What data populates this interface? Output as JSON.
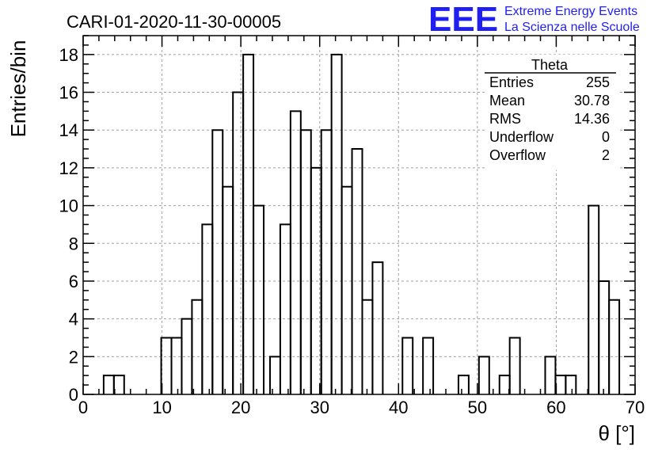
{
  "chart_data": {
    "type": "histogram",
    "title": "CARI-01-2020-11-30-00005",
    "xlabel": "θ [°]",
    "ylabel": "Entries/bin",
    "xlim": [
      0,
      70
    ],
    "ylim": [
      0,
      19
    ],
    "grid": true,
    "bin_width": 1.3,
    "bins": [
      {
        "x0": 2.6,
        "x1": 3.9,
        "count": 1
      },
      {
        "x0": 3.9,
        "x1": 5.2,
        "count": 1
      },
      {
        "x0": 9.9,
        "x1": 11.2,
        "count": 3
      },
      {
        "x0": 11.2,
        "x1": 12.5,
        "count": 3
      },
      {
        "x0": 12.5,
        "x1": 13.8,
        "count": 4
      },
      {
        "x0": 13.8,
        "x1": 15.1,
        "count": 5
      },
      {
        "x0": 15.1,
        "x1": 16.4,
        "count": 9
      },
      {
        "x0": 16.4,
        "x1": 17.7,
        "count": 14
      },
      {
        "x0": 17.7,
        "x1": 19.0,
        "count": 11
      },
      {
        "x0": 19.0,
        "x1": 20.3,
        "count": 16
      },
      {
        "x0": 20.3,
        "x1": 21.6,
        "count": 18
      },
      {
        "x0": 21.6,
        "x1": 22.9,
        "count": 10
      },
      {
        "x0": 23.7,
        "x1": 25.0,
        "count": 2
      },
      {
        "x0": 25.0,
        "x1": 26.3,
        "count": 9
      },
      {
        "x0": 26.3,
        "x1": 27.6,
        "count": 15
      },
      {
        "x0": 27.6,
        "x1": 28.9,
        "count": 14
      },
      {
        "x0": 28.9,
        "x1": 30.2,
        "count": 12
      },
      {
        "x0": 30.2,
        "x1": 31.5,
        "count": 14
      },
      {
        "x0": 31.5,
        "x1": 32.8,
        "count": 18
      },
      {
        "x0": 32.8,
        "x1": 34.1,
        "count": 11
      },
      {
        "x0": 34.1,
        "x1": 35.4,
        "count": 13
      },
      {
        "x0": 35.4,
        "x1": 36.7,
        "count": 5
      },
      {
        "x0": 36.7,
        "x1": 38.0,
        "count": 7
      },
      {
        "x0": 40.5,
        "x1": 41.8,
        "count": 3
      },
      {
        "x0": 43.1,
        "x1": 44.4,
        "count": 3
      },
      {
        "x0": 47.6,
        "x1": 48.9,
        "count": 1
      },
      {
        "x0": 50.2,
        "x1": 51.5,
        "count": 2
      },
      {
        "x0": 52.8,
        "x1": 54.1,
        "count": 1
      },
      {
        "x0": 54.1,
        "x1": 55.4,
        "count": 3
      },
      {
        "x0": 58.6,
        "x1": 59.9,
        "count": 2
      },
      {
        "x0": 59.9,
        "x1": 61.2,
        "count": 1
      },
      {
        "x0": 61.2,
        "x1": 62.5,
        "count": 1
      },
      {
        "x0": 64.1,
        "x1": 65.4,
        "count": 10
      },
      {
        "x0": 65.4,
        "x1": 66.7,
        "count": 6
      },
      {
        "x0": 66.7,
        "x1": 68.0,
        "count": 5
      }
    ],
    "x_ticks": [
      "0",
      "10",
      "20",
      "30",
      "40",
      "50",
      "60",
      "70"
    ],
    "y_ticks": [
      "0",
      "2",
      "4",
      "6",
      "8",
      "10",
      "12",
      "14",
      "16",
      "18"
    ],
    "stats": {
      "title": "Theta",
      "rows": [
        {
          "label": "Entries",
          "value": "255"
        },
        {
          "label": "Mean",
          "value": "30.78"
        },
        {
          "label": "RMS",
          "value": "14.36"
        },
        {
          "label": "Underflow",
          "value": "0"
        },
        {
          "label": "Overflow",
          "value": "2"
        }
      ],
      "legend_placement": "top-right"
    }
  },
  "logo": {
    "mark": "EEE",
    "line1": "Extreme Energy Events",
    "line2": "La Scienza nelle Scuole"
  }
}
